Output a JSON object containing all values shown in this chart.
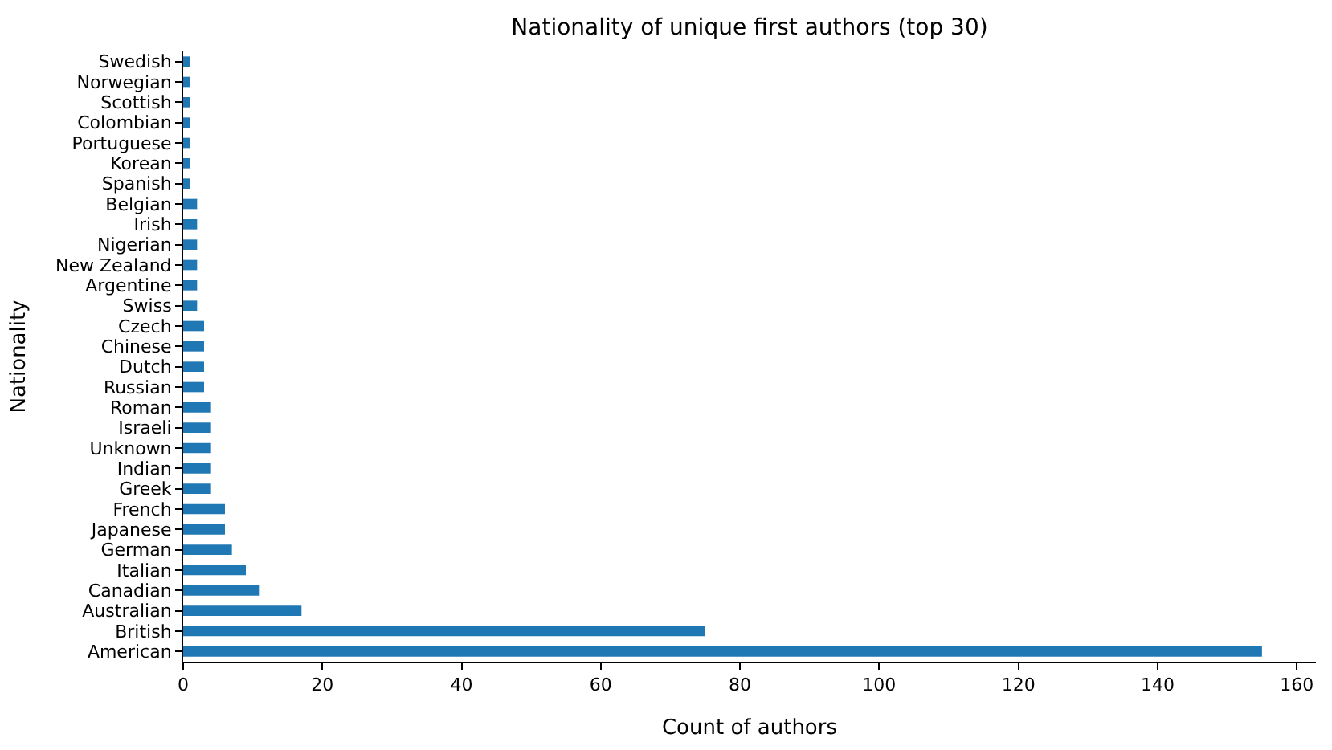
{
  "chart_data": {
    "type": "bar",
    "orientation": "horizontal",
    "title": "Nationality of unique first authors (top 30)",
    "xlabel": "Count of authors",
    "ylabel": "Nationality",
    "categories": [
      "Swedish",
      "Norwegian",
      "Scottish",
      "Colombian",
      "Portuguese",
      "Korean",
      "Spanish",
      "Belgian",
      "Irish",
      "Nigerian",
      "New Zealand",
      "Argentine",
      "Swiss",
      "Czech",
      "Chinese",
      "Dutch",
      "Russian",
      "Roman",
      "Israeli",
      "Unknown",
      "Indian",
      "Greek",
      "French",
      "Japanese",
      "German",
      "Italian",
      "Canadian",
      "Australian",
      "British",
      "American"
    ],
    "values": [
      1,
      1,
      1,
      1,
      1,
      1,
      1,
      2,
      2,
      2,
      2,
      2,
      2,
      3,
      3,
      3,
      3,
      4,
      4,
      4,
      4,
      4,
      6,
      6,
      7,
      9,
      11,
      17,
      75,
      155
    ],
    "color": "#1f77b4",
    "xlim": [
      0,
      162.75
    ],
    "xticks": [
      0,
      20,
      40,
      60,
      80,
      100,
      120,
      140,
      160
    ]
  }
}
